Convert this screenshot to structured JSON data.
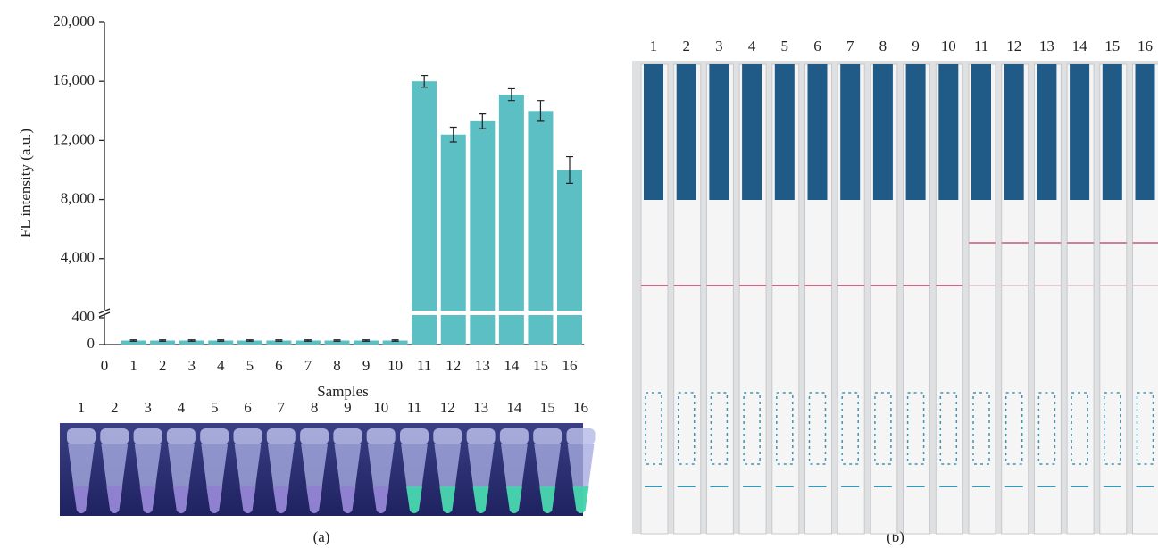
{
  "chart_data": {
    "type": "bar",
    "ylabel": "FL intensity (a.u.)",
    "xlabel": "Samples",
    "x": [
      1,
      2,
      3,
      4,
      5,
      6,
      7,
      8,
      9,
      10,
      11,
      12,
      13,
      14,
      15,
      16
    ],
    "values": [
      60,
      60,
      60,
      60,
      60,
      60,
      60,
      60,
      60,
      60,
      16000,
      12400,
      13300,
      15100,
      14000,
      10000
    ],
    "errors": [
      10,
      10,
      10,
      10,
      10,
      10,
      10,
      10,
      10,
      10,
      400,
      500,
      500,
      400,
      700,
      900
    ],
    "color": "#5bbfc4",
    "xlim": [
      0,
      16.5
    ],
    "xticks": [
      0,
      1,
      2,
      3,
      4,
      5,
      6,
      7,
      8,
      9,
      10,
      11,
      12,
      13,
      14,
      15,
      16
    ],
    "ylim": [
      0,
      20000
    ],
    "ybreak": [
      400,
      600
    ],
    "yticks": [
      0,
      400,
      {
        "value": 4000,
        "label": "4,000"
      },
      {
        "value": 8000,
        "label": "8,000"
      },
      {
        "value": 12000,
        "label": "12,000"
      },
      {
        "value": 16000,
        "label": "16,000"
      },
      {
        "value": 20000,
        "label": "20,000"
      }
    ]
  },
  "tube_labels": [
    "1",
    "2",
    "3",
    "4",
    "5",
    "6",
    "7",
    "8",
    "9",
    "10",
    "11",
    "12",
    "13",
    "14",
    "15",
    "16"
  ],
  "strip_labels": [
    "1",
    "2",
    "3",
    "4",
    "5",
    "6",
    "7",
    "8",
    "9",
    "10",
    "11",
    "12",
    "13",
    "14",
    "15",
    "16"
  ],
  "panel_labels": [
    "(a)",
    "(b)"
  ]
}
